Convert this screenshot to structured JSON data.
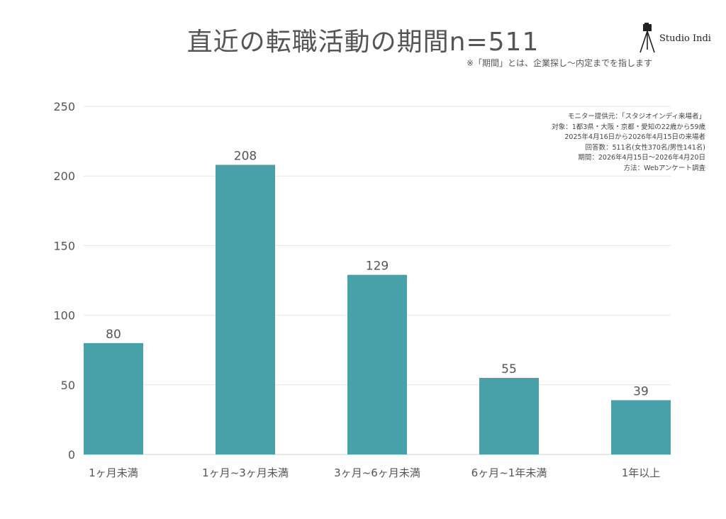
{
  "header": {
    "title": "直近の転職活動の期間",
    "n_label": "n=511",
    "note": "※「期間」とは、企業探し〜内定までを指します"
  },
  "brand": {
    "name": "Studio Indi",
    "icon": "camera-tripod-icon"
  },
  "source_lines": [
    "モニター提供元：「スタジオインディ来場者」",
    "対象：1都3県・大阪・京都・愛知の22歳から59歳",
    "2025年4月16日から2026年4月15日の来場者",
    "回答数：511名(女性370名/男性141名)",
    "期間：2026年4月15日〜2026年4月20日",
    "方法：Webアンケート調査"
  ],
  "colors": {
    "bar": "#48a1a8",
    "grid": "#e6e6e6",
    "text": "#555555"
  },
  "chart_data": {
    "type": "bar",
    "title": "直近の転職活動の期間",
    "categories": [
      "1ヶ月未満",
      "1ヶ月~3ヶ月未満",
      "3ヶ月~6ヶ月未満",
      "6ヶ月~1年未満",
      "1年以上"
    ],
    "values": [
      80,
      208,
      129,
      55,
      39
    ],
    "data_labels": [
      "80",
      "208",
      "129",
      "55",
      "39"
    ],
    "yticks": [
      0,
      50,
      100,
      150,
      200,
      250
    ],
    "ylim": [
      0,
      250
    ],
    "grid": true,
    "legend": "none"
  }
}
